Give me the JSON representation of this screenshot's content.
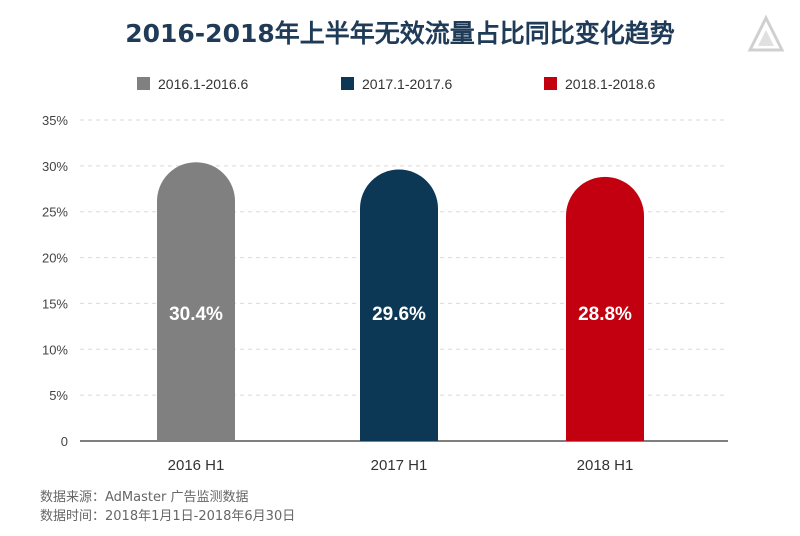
{
  "title": "2016-2018年上半年无效流量占比同比变化趋势",
  "logo": "a-shape-logo",
  "footnotes": {
    "source": "数据来源：AdMaster 广告监测数据",
    "period": "数据时间：2018年1月1日-2018年6月30日"
  },
  "chart_data": {
    "type": "bar",
    "categories": [
      "2016 H1",
      "2017 H1",
      "2018 H1"
    ],
    "values": [
      30.4,
      29.6,
      28.8
    ],
    "data_labels": [
      "30.4%",
      "29.6%",
      "28.8%"
    ],
    "legend": [
      "2016.1-2016.6",
      "2017.1-2017.6",
      "2018.1-2018.6"
    ],
    "legend_position": "top",
    "colors": [
      "#808080",
      "#0c3755",
      "#c2000f"
    ],
    "yticks": [
      0,
      5,
      10,
      15,
      20,
      25,
      30,
      35
    ],
    "ytick_labels": [
      "0",
      "5%",
      "10%",
      "15%",
      "20%",
      "25%",
      "30%",
      "35%"
    ],
    "ylim": [
      0,
      35
    ],
    "grid": true,
    "bar_shape": "rounded-top"
  }
}
